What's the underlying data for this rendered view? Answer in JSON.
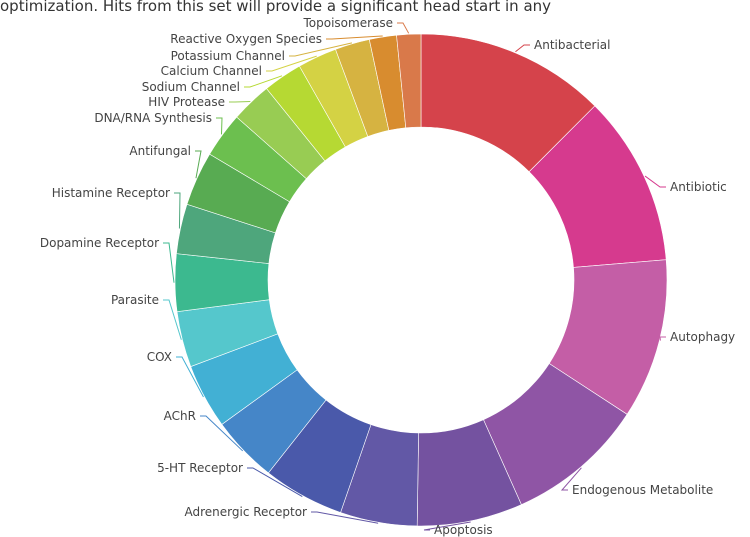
{
  "intro_text": "optimization. Hits from this set will provide a significant head start in any",
  "chart_data": {
    "type": "pie",
    "donut": true,
    "title": "",
    "legend": "none",
    "slices": [
      {
        "label": "Antibacterial",
        "value": 12.6,
        "color": "#d5434b"
      },
      {
        "label": "Antibiotic",
        "value": 11.3,
        "color": "#d63a8e"
      },
      {
        "label": "Autophagy",
        "value": 10.6,
        "color": "#c45ea6"
      },
      {
        "label": "Endogenous Metabolite",
        "value": 9.2,
        "color": "#8f55a5"
      },
      {
        "label": "Apoptosis",
        "value": 7.0,
        "color": "#7452a0"
      },
      {
        "label": "Adrenergic Receptor",
        "value": 5.1,
        "color": "#6258a6"
      },
      {
        "label": "5-HT Receptor",
        "value": 5.4,
        "color": "#4a59aa"
      },
      {
        "label": "AChR",
        "value": 4.4,
        "color": "#4586c8"
      },
      {
        "label": "COX",
        "value": 4.3,
        "color": "#42b0d4"
      },
      {
        "label": "Parasite",
        "value": 3.7,
        "color": "#55c7cc"
      },
      {
        "label": "Dopamine Receptor",
        "value": 3.8,
        "color": "#3cb98f"
      },
      {
        "label": "Histamine Receptor",
        "value": 3.3,
        "color": "#4ea67c"
      },
      {
        "label": "Antifungal",
        "value": 3.6,
        "color": "#58ab52"
      },
      {
        "label": "DNA/RNA Synthesis",
        "value": 3.0,
        "color": "#6cbf4f"
      },
      {
        "label": "HIV Protease",
        "value": 2.7,
        "color": "#98cc53"
      },
      {
        "label": "Sodium Channel",
        "value": 2.6,
        "color": "#b6d933"
      },
      {
        "label": "Calcium Channel",
        "value": 2.6,
        "color": "#d4d244"
      },
      {
        "label": "Potassium Channel",
        "value": 2.3,
        "color": "#d6b341"
      },
      {
        "label": "Reactive Oxygen Species",
        "value": 1.8,
        "color": "#d88c2f"
      },
      {
        "label": "Topoisomerase",
        "value": 1.6,
        "color": "#d9794a"
      }
    ]
  }
}
